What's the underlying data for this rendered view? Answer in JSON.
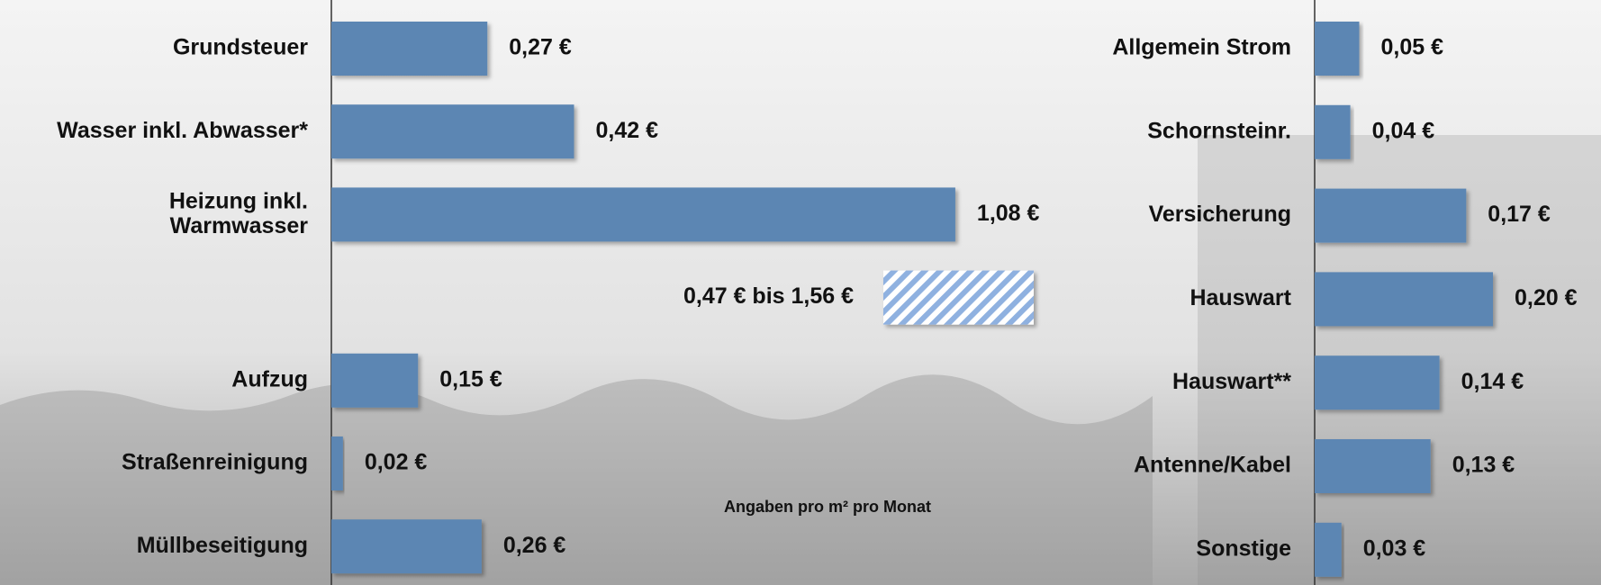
{
  "chart_data": [
    {
      "type": "bar",
      "orientation": "horizontal",
      "categories": [
        "Grundsteuer",
        "Wasser inkl. Abwasser*",
        "Heizung inkl.\nWarmwasser",
        null,
        "Aufzug",
        "Straßenreinigung",
        "Müllbeseitigung"
      ],
      "values": [
        0.27,
        0.42,
        1.08,
        null,
        0.15,
        0.02,
        0.26
      ],
      "value_labels": [
        "0,27 €",
        "0,42 €",
        "1,08 €",
        null,
        "0,15 €",
        "0,02 €",
        "0,26 €"
      ],
      "color": "#5b86b3",
      "xlim": [
        0,
        1.25
      ],
      "annotation": "0,47 € bis 1,56 €",
      "note": "Angaben pro m² pro Monat"
    },
    {
      "type": "bar",
      "orientation": "horizontal",
      "categories": [
        "Allgemein Strom",
        "Schornsteinr.",
        "Versicherung",
        "Hauswart",
        "Hauswart**",
        "Antenne/Kabel",
        "Sonstige"
      ],
      "values": [
        0.05,
        0.04,
        0.17,
        0.2,
        0.14,
        0.13,
        0.03
      ],
      "value_labels": [
        "0,05 €",
        "0,04 €",
        "0,17 €",
        "0,20 €",
        "0,14 €",
        "0,13 €",
        "0,03 €"
      ],
      "color": "#5b86b3",
      "xlim": [
        0,
        0.3
      ]
    }
  ]
}
